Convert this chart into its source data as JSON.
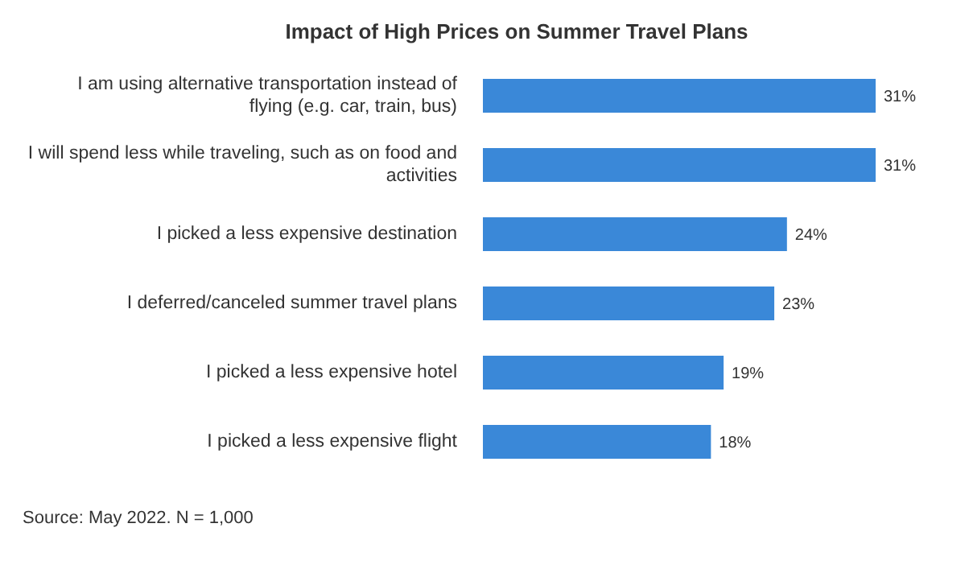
{
  "chart_data": {
    "type": "bar",
    "orientation": "horizontal",
    "title": "Impact of High Prices on Summer Travel Plans",
    "categories": [
      "I am using alternative transportation instead of flying (e.g. car, train, bus)",
      "I will spend less while traveling, such as on food and activities",
      "I picked a less expensive destination",
      "I deferred/canceled summer travel plans",
      "I picked a less expensive hotel",
      "I picked a less expensive flight"
    ],
    "values": [
      31,
      31,
      24,
      23,
      19,
      18
    ],
    "value_labels": [
      "31%",
      "31%",
      "24%",
      "23%",
      "19%",
      "18%"
    ],
    "color": "#3a88d8",
    "grid": false,
    "legend": false,
    "annotations": [
      "Source: May 2022. N = 1,000"
    ]
  }
}
